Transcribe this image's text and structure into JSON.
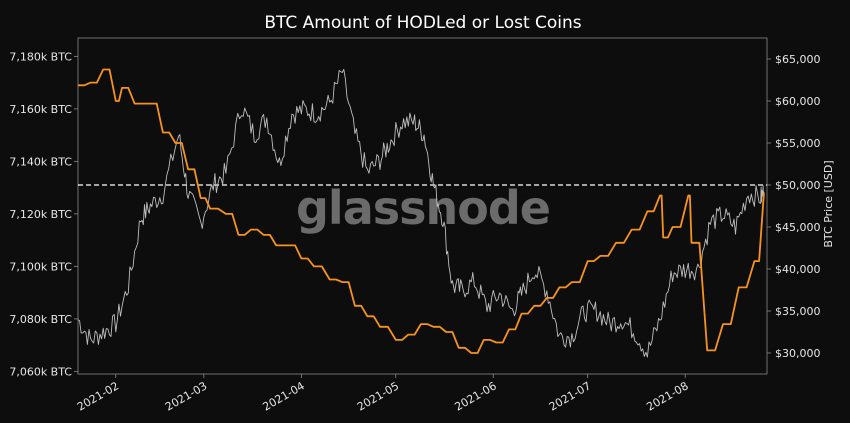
{
  "chart_data": {
    "type": "line",
    "title": "BTC Amount of HODLed or Lost Coins",
    "watermark": "glassnode",
    "colors": {
      "background": "#0d0d0d",
      "hodl_line": "#f7931a",
      "price_line": "#bdbdbd",
      "reference_line": "#ffffff",
      "axis": "#8a8a8a"
    },
    "x_axis": {
      "type": "date",
      "range": [
        "2021-01-20",
        "2021-08-27"
      ],
      "ticks": [
        "2021-02",
        "2021-03",
        "2021-04",
        "2021-05",
        "2021-06",
        "2021-07",
        "2021-08"
      ],
      "tick_dates": [
        "2021-02-01",
        "2021-03-01",
        "2021-04-01",
        "2021-05-01",
        "2021-06-01",
        "2021-07-01",
        "2021-08-01"
      ]
    },
    "y_left": {
      "label": "",
      "ylim": [
        7059000,
        7187000
      ],
      "ticks": [
        7060000,
        7080000,
        7100000,
        7120000,
        7140000,
        7160000,
        7180000
      ],
      "tick_labels": [
        "7,060k BTC",
        "7,080k BTC",
        "7,100k BTC",
        "7,120k BTC",
        "7,140k BTC",
        "7,160k BTC",
        "7,180k BTC"
      ]
    },
    "y_right": {
      "label": "BTC Price [USD]",
      "ylim": [
        27500,
        67500
      ],
      "ticks": [
        30000,
        35000,
        40000,
        45000,
        50000,
        55000,
        60000,
        65000
      ],
      "tick_labels": [
        "$30,000",
        "$35,000",
        "$40,000",
        "$45,000",
        "$50,000",
        "$55,000",
        "$60,000",
        "$65,000"
      ]
    },
    "reference_line": {
      "axis": "left",
      "value": 7131000,
      "style": "dashed"
    },
    "series": [
      {
        "axis": "left",
        "x": [
          "2021-01-20",
          "2021-01-24",
          "2021-01-28",
          "2021-02-01",
          "2021-02-03",
          "2021-02-07",
          "2021-02-12",
          "2021-02-16",
          "2021-02-20",
          "2021-02-24",
          "2021-02-28",
          "2021-03-03",
          "2021-03-08",
          "2021-03-12",
          "2021-03-16",
          "2021-03-20",
          "2021-03-24",
          "2021-03-28",
          "2021-04-01",
          "2021-04-05",
          "2021-04-10",
          "2021-04-14",
          "2021-04-18",
          "2021-04-22",
          "2021-04-26",
          "2021-05-01",
          "2021-05-05",
          "2021-05-09",
          "2021-05-13",
          "2021-05-17",
          "2021-05-21",
          "2021-05-25",
          "2021-05-29",
          "2021-06-02",
          "2021-06-06",
          "2021-06-10",
          "2021-06-14",
          "2021-06-18",
          "2021-06-22",
          "2021-06-26",
          "2021-07-01",
          "2021-07-05",
          "2021-07-10",
          "2021-07-15",
          "2021-07-20",
          "2021-07-24",
          "2021-07-25",
          "2021-07-28",
          "2021-08-02",
          "2021-08-03",
          "2021-08-08",
          "2021-08-13",
          "2021-08-18",
          "2021-08-23",
          "2021-08-26"
        ],
        "values": [
          7169000,
          7170000,
          7175000,
          7163000,
          7168000,
          7162000,
          7162000,
          7151000,
          7147000,
          7137000,
          7126000,
          7122000,
          7120000,
          7112000,
          7114000,
          7112000,
          7108000,
          7108000,
          7103000,
          7100000,
          7095000,
          7094000,
          7085000,
          7081000,
          7077000,
          7072000,
          7074000,
          7078000,
          7077000,
          7075000,
          7069000,
          7067000,
          7072000,
          7071000,
          7076000,
          7082000,
          7085000,
          7088000,
          7092000,
          7094000,
          7102000,
          7104000,
          7109000,
          7114000,
          7121000,
          7127000,
          7111000,
          7115000,
          7127000,
          7109000,
          7068000,
          7078000,
          7092000,
          7102000,
          7128000
        ]
      },
      {
        "axis": "right",
        "x": [
          "2021-01-20",
          "2021-01-24",
          "2021-01-28",
          "2021-02-01",
          "2021-02-05",
          "2021-02-09",
          "2021-02-12",
          "2021-02-16",
          "2021-02-21",
          "2021-02-24",
          "2021-02-28",
          "2021-03-04",
          "2021-03-08",
          "2021-03-13",
          "2021-03-17",
          "2021-03-21",
          "2021-03-25",
          "2021-03-29",
          "2021-04-02",
          "2021-04-06",
          "2021-04-10",
          "2021-04-14",
          "2021-04-18",
          "2021-04-22",
          "2021-04-26",
          "2021-04-29",
          "2021-05-03",
          "2021-05-07",
          "2021-05-10",
          "2021-05-13",
          "2021-05-16",
          "2021-05-19",
          "2021-05-22",
          "2021-05-26",
          "2021-05-30",
          "2021-06-03",
          "2021-06-07",
          "2021-06-10",
          "2021-06-14",
          "2021-06-18",
          "2021-06-22",
          "2021-06-26",
          "2021-06-30",
          "2021-07-04",
          "2021-07-08",
          "2021-07-12",
          "2021-07-16",
          "2021-07-20",
          "2021-07-24",
          "2021-07-28",
          "2021-08-01",
          "2021-08-05",
          "2021-08-09",
          "2021-08-13",
          "2021-08-17",
          "2021-08-21",
          "2021-08-25",
          "2021-08-26"
        ],
        "values": [
          34000,
          31500,
          32500,
          33500,
          38000,
          46000,
          47500,
          49000,
          56000,
          49000,
          45500,
          50000,
          51500,
          59500,
          56000,
          58000,
          52500,
          58500,
          59000,
          58500,
          59800,
          63500,
          56000,
          51500,
          53000,
          55000,
          57500,
          57500,
          56000,
          50000,
          46000,
          38000,
          37500,
          38500,
          35500,
          37000,
          35000,
          37000,
          40000,
          37500,
          32000,
          32000,
          35000,
          35000,
          33500,
          34000,
          32500,
          30000,
          34000,
          39500,
          40000,
          40000,
          45500,
          46500,
          45000,
          49000,
          48500,
          49200
        ]
      }
    ]
  }
}
